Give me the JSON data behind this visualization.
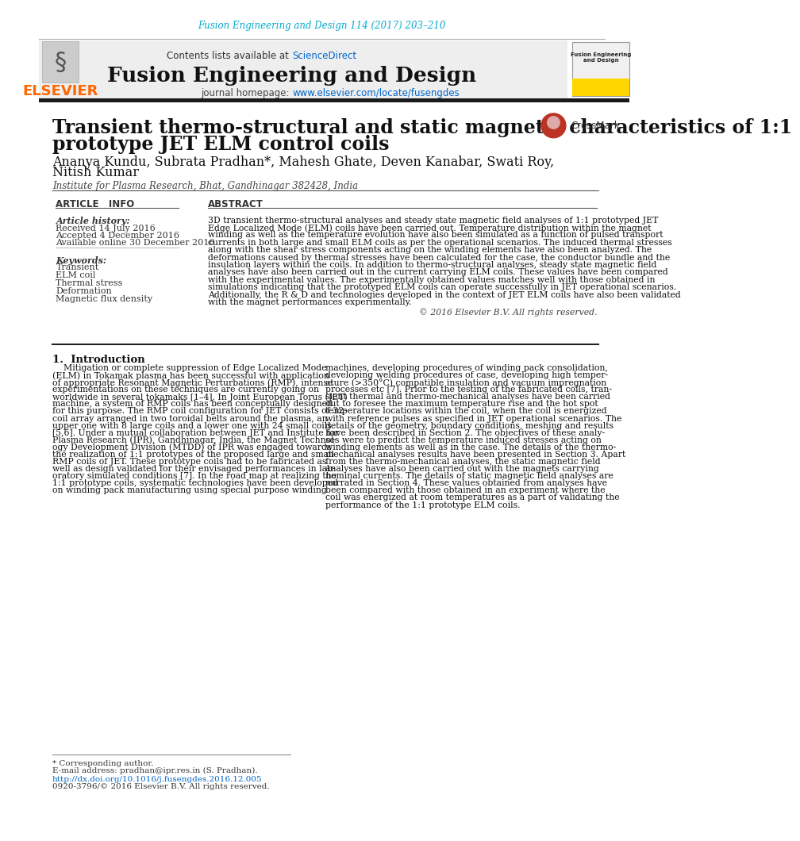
{
  "page_bg": "#ffffff",
  "top_journal_ref": "Fusion Engineering and Design 114 (2017) 203–210",
  "top_journal_ref_color": "#00aacc",
  "journal_name": "Fusion Engineering and Design",
  "elsevier_color": "#FF6600",
  "journal_url": "www.elsevier.com/locate/fusengdes",
  "journal_url_color": "#0066cc",
  "sciencedirect_color": "#0066cc",
  "paper_title_line1": "Transient thermo-structural and static magnetic characteristics of 1:1",
  "paper_title_line2": "prototype JET ELM control coils",
  "authors_line1": "Ananya Kundu, Subrata Pradhan*, Mahesh Ghate, Deven Kanabar, Swati Roy,",
  "authors_line2": "Nitish Kumar",
  "affiliation": "Institute for Plasma Research, Bhat, Gandhinagar 382428, India",
  "article_info_header": "ARTICLE   INFO",
  "abstract_header": "ABSTRACT",
  "article_history_label": "Article history:",
  "received": "Received 14 July 2016",
  "accepted": "Accepted 4 December 2016",
  "available": "Available online 30 December 2016",
  "keywords_label": "Keywords:",
  "keywords": [
    "Transient",
    "ELM coil",
    "Thermal stress",
    "Deformation",
    "Magnetic flux density"
  ],
  "copyright": "© 2016 Elsevier B.V. All rights reserved.",
  "section1_title": "1.  Introduction",
  "footer_text1": "* Corresponding author.",
  "footer_text2": "E-mail address: pradhan@ipr.res.in (S. Pradhan).",
  "footer_text3": "http://dx.doi.org/10.1016/j.fusengdes.2016.12.005",
  "footer_text4": "0920-3796/© 2016 Elsevier B.V. All rights reserved.",
  "link_color": "#0066cc",
  "abstract_lines": [
    "3D transient thermo-structural analyses and steady state magnetic field analyses of 1:1 prototyped JET",
    "Edge Localized Mode (ELM) coils have been carried out. Temperature distribution within the magnet",
    "winding as well as the temperature evolution have also been simulated as a function of pulsed transport",
    "currents in both large and small ELM coils as per the operational scenarios. The induced thermal stresses",
    "along with the shear stress components acting on the winding elements have also been analyzed. The",
    "deformations caused by thermal stresses have been calculated for the case, the conductor bundle and the",
    "insulation layers within the coils. In addition to thermo-structural analyses, steady state magnetic field",
    "analyses have also been carried out in the current carrying ELM coils. These values have been compared",
    "with the experimental values. The experimentally obtained values matches well with those obtained in",
    "simulations indicating that the prototyped ELM coils can operate successfully in JET operational scenarios.",
    "Additionally, the R & D and technologies developed in the context of JET ELM coils have also been validated",
    "with the magnet performances experimentally."
  ],
  "intro_left_lines": [
    "    Mitigation or complete suppression of Edge Localized Mode",
    "(ELM) in Tokamak plasma has been successful with application",
    "of appropriate Resonant Magnetic Perturbations (RMP), intense",
    "experimentations on these techniques are currently going on",
    "worldwide in several tokamaks [1–4]. In Joint European Torus (JET)",
    "machine, a system of RMP coils has been conceptually designed",
    "for this purpose. The RMP coil configuration for JET consists of 32-",
    "coil array arranged in two toroidal belts around the plasma, an",
    "upper one with 8 large coils and a lower one with 24 small coils",
    "[5,6]. Under a mutual collaboration between JET and Institute for",
    "Plasma Research (IPR), Gandhinagar, India, the Magnet Technol-",
    "ogy Development Division (MTDD) of IPR was engaged towards",
    "the realization of 1:1 prototypes of the proposed large and small",
    "RMP coils of JET. These prototype coils had to be fabricated as",
    "well as design validated for their envisaged performances in lab-",
    "oratory simulated conditions [7]. In the road map at realizing the",
    "1:1 prototype coils, systematic technologies have been developed",
    "on winding pack manufacturing using special purpose winding"
  ],
  "intro_right_lines": [
    "machines, developing procedures of winding pack consolidation,",
    "developing welding procedures of case, developing high temper-",
    "ature (>350°C) compatible insulation and vacuum impregnation",
    "processes etc [7]. Prior to the testing of the fabricated coils, tran-",
    "sient thermal and thermo-mechanical analyses have been carried",
    "out to foresee the maximum temperature rise and the hot spot",
    "temperature locations within the coil, when the coil is energized",
    "with reference pulses as specified in JET operational scenarios. The",
    "details of the geometry, boundary conditions, meshing and results",
    "have been described in Section 2. The objectives of these analy-",
    "ses were to predict the temperature induced stresses acting on",
    "winding elements as well as in the case. The details of the thermo-",
    "mechanical analyses results have been presented in Section 3. Apart",
    "from the thermo-mechanical analyses, the static magnetic field",
    "analyses have also been carried out with the magnets carrying",
    "nominal currents. The details of static magnetic field analyses are",
    "narrated in Section 4. These values obtained from analyses have",
    "been compared with those obtained in an experiment where the",
    "coil was energized at room temperatures as a part of validating the",
    "performance of the 1:1 prototype ELM coils."
  ]
}
